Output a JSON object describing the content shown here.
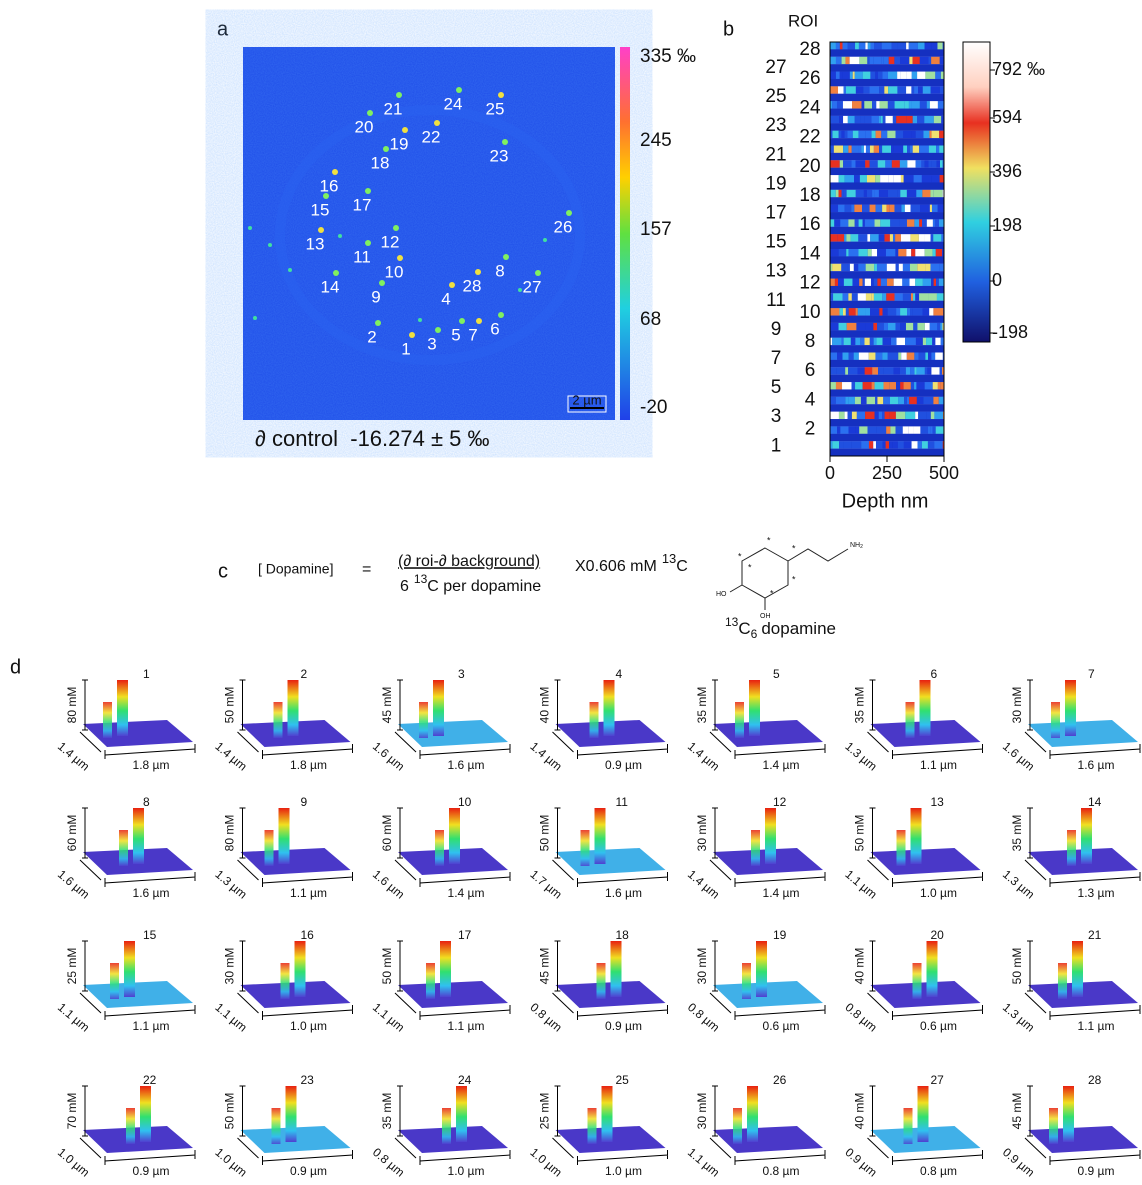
{
  "panel_a": {
    "label": "a",
    "roi_labels": [
      "1",
      "2",
      "3",
      "4",
      "5",
      "6",
      "7",
      "8",
      "9",
      "10",
      "11",
      "12",
      "13",
      "14",
      "15",
      "16",
      "17",
      "18",
      "19",
      "20",
      "21",
      "22",
      "23",
      "24",
      "25",
      "26",
      "27",
      "28"
    ],
    "colorbar_ticks": [
      "335 ‰",
      "245",
      "157",
      "68",
      "-20"
    ],
    "scale_bar": "2 µm",
    "caption": "∂ control  -16.274 ± 5 ‰"
  },
  "panel_b": {
    "label": "b",
    "roi_header": "ROI",
    "row_labels_left": [
      "27",
      "25",
      "23",
      "21",
      "19",
      "17",
      "15",
      "13",
      "11",
      "9",
      "7",
      "5",
      "3",
      "1"
    ],
    "row_labels_right": [
      "28",
      "26",
      "24",
      "22",
      "20",
      "18",
      "16",
      "14",
      "12",
      "10",
      "8",
      "6",
      "4",
      "2"
    ],
    "colorbar_ticks": [
      "792 ‰",
      "594",
      "396",
      "198",
      "0",
      "-198"
    ],
    "x_ticks": [
      "0",
      "250",
      "500"
    ],
    "x_label": "Depth nm"
  },
  "panel_c": {
    "label": "c",
    "lhs": "[ Dopamine]",
    "equals": "=",
    "numerator": "(∂ roi-∂ background)",
    "denominator_count": "6",
    "denominator_isotope_mass": "13",
    "denominator_rest": "C per dopamine",
    "multiplier": "X0.606 mM",
    "multiplier_isotope_mass": "13",
    "multiplier_isotope_element": "C",
    "molecule_mass": "13",
    "molecule_element": "C",
    "molecule_count": "6",
    "molecule_name": "dopamine",
    "amine": "NH",
    "amine_subscript": "2",
    "hydroxyl_left": "HO",
    "hydroxyl_bottom": "OH",
    "label_marker": "*"
  },
  "panel_d": {
    "label": "d",
    "plots": [
      {
        "roi": "1",
        "z_label": "80 mM",
        "depth_label": "1.4 µm",
        "width_label": "1.8 µm"
      },
      {
        "roi": "2",
        "z_label": "50 mM",
        "depth_label": "1.4 µm",
        "width_label": "1.8 µm"
      },
      {
        "roi": "3",
        "z_label": "45 mM",
        "depth_label": "1.6 µm",
        "width_label": "1.6 µm"
      },
      {
        "roi": "4",
        "z_label": "40 mM",
        "depth_label": "1.4 µm",
        "width_label": "0.9 µm"
      },
      {
        "roi": "5",
        "z_label": "35 mM",
        "depth_label": "1.4 µm",
        "width_label": "1.4 µm"
      },
      {
        "roi": "6",
        "z_label": "35 mM",
        "depth_label": "1.3 µm",
        "width_label": "1.1 µm"
      },
      {
        "roi": "7",
        "z_label": "30 mM",
        "depth_label": "1.6 µm",
        "width_label": "1.6 µm"
      },
      {
        "roi": "8",
        "z_label": "60 mM",
        "depth_label": "1.6 µm",
        "width_label": "1.6 µm"
      },
      {
        "roi": "9",
        "z_label": "80 mM",
        "depth_label": "1.3 µm",
        "width_label": "1.1 µm"
      },
      {
        "roi": "10",
        "z_label": "60 mM",
        "depth_label": "1.6 µm",
        "width_label": "1.4 µm"
      },
      {
        "roi": "11",
        "z_label": "50 mM",
        "depth_label": "1.7 µm",
        "width_label": "1.6 µm"
      },
      {
        "roi": "12",
        "z_label": "30 mM",
        "depth_label": "1.4 µm",
        "width_label": "1.4 µm"
      },
      {
        "roi": "13",
        "z_label": "50 mM",
        "depth_label": "1.1 µm",
        "width_label": "1.0 µm"
      },
      {
        "roi": "14",
        "z_label": "35 mM",
        "depth_label": "1.3 µm",
        "width_label": "1.3 µm"
      },
      {
        "roi": "15",
        "z_label": "25 mM",
        "depth_label": "1.1 µm",
        "width_label": "1.1 µm"
      },
      {
        "roi": "16",
        "z_label": "30 mM",
        "depth_label": "1.1 µm",
        "width_label": "1.0 µm"
      },
      {
        "roi": "17",
        "z_label": "50 mM",
        "depth_label": "1.1 µm",
        "width_label": "1.1 µm"
      },
      {
        "roi": "18",
        "z_label": "45 mM",
        "depth_label": "0.8 µm",
        "width_label": "0.9 µm"
      },
      {
        "roi": "19",
        "z_label": "30 mM",
        "depth_label": "0.8 µm",
        "width_label": "0.6 µm"
      },
      {
        "roi": "20",
        "z_label": "40 mM",
        "depth_label": "0.8 µm",
        "width_label": "0.6 µm"
      },
      {
        "roi": "21",
        "z_label": "50 mM",
        "depth_label": "1.3 µm",
        "width_label": "1.1 µm"
      },
      {
        "roi": "22",
        "z_label": "70 mM",
        "depth_label": "1.0 µm",
        "width_label": "0.9 µm"
      },
      {
        "roi": "23",
        "z_label": "50 mM",
        "depth_label": "1.0 µm",
        "width_label": "0.9 µm"
      },
      {
        "roi": "24",
        "z_label": "35 mM",
        "depth_label": "0.8 µm",
        "width_label": "1.0 µm"
      },
      {
        "roi": "25",
        "z_label": "25 mM",
        "depth_label": "1.0 µm",
        "width_label": "1.0 µm"
      },
      {
        "roi": "26",
        "z_label": "30 mM",
        "depth_label": "1.1 µm",
        "width_label": "0.8 µm"
      },
      {
        "roi": "27",
        "z_label": "40 mM",
        "depth_label": "0.9 µm",
        "width_label": "0.8 µm"
      },
      {
        "roi": "28",
        "z_label": "45 mM",
        "depth_label": "0.9 µm",
        "width_label": "0.9 µm"
      }
    ]
  }
}
